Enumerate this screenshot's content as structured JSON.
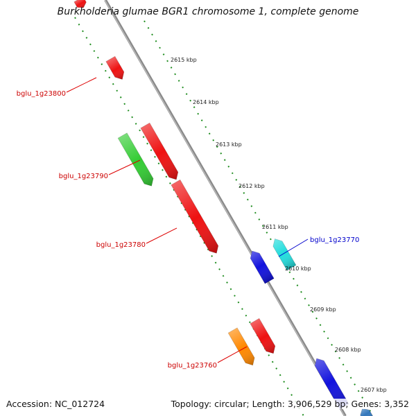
{
  "header": {
    "title": "Burkholderia glumae BGR1 chromosome 1, complete genome"
  },
  "footer": {
    "accession": "Accession: NC_012724",
    "summary": "Topology: circular; Length: 3,906,529 bp; Genes: 3,352"
  },
  "colors": {
    "backbone": "#7a7a7a",
    "tick": "#1e8c1e",
    "forward_label": "#cc0000",
    "reverse_label": "#0000cc"
  },
  "scale_labels": [
    "2615 kbp",
    "2614 kbp",
    "2613 kbp",
    "2612 kbp",
    "2611 kbp",
    "2610 kbp",
    "2609 kbp",
    "2608 kbp",
    "2607 kbp"
  ],
  "gene_labels": [
    {
      "text": "bglu_1g23800",
      "strand": "forward"
    },
    {
      "text": "bglu_1g23790",
      "strand": "forward"
    },
    {
      "text": "bglu_1g23780",
      "strand": "forward"
    },
    {
      "text": "bglu_1g23770",
      "strand": "reverse"
    },
    {
      "text": "bglu_1g23760",
      "strand": "forward"
    }
  ],
  "features": [
    {
      "color": "#ee1111",
      "strand": "forward"
    },
    {
      "color": "#ee1111",
      "strand": "forward"
    },
    {
      "color": "#33cc33",
      "strand": "forward"
    },
    {
      "color": "#ee1111",
      "strand": "forward"
    },
    {
      "color": "#ee1111",
      "strand": "forward"
    },
    {
      "color": "#1111dd",
      "strand": "reverse"
    },
    {
      "color": "#22dddd",
      "strand": "reverse"
    },
    {
      "color": "#ff8800",
      "strand": "forward"
    },
    {
      "color": "#ee1111",
      "strand": "forward"
    },
    {
      "color": "#1111dd",
      "strand": "reverse"
    },
    {
      "color": "#3377bb",
      "strand": "reverse"
    }
  ]
}
